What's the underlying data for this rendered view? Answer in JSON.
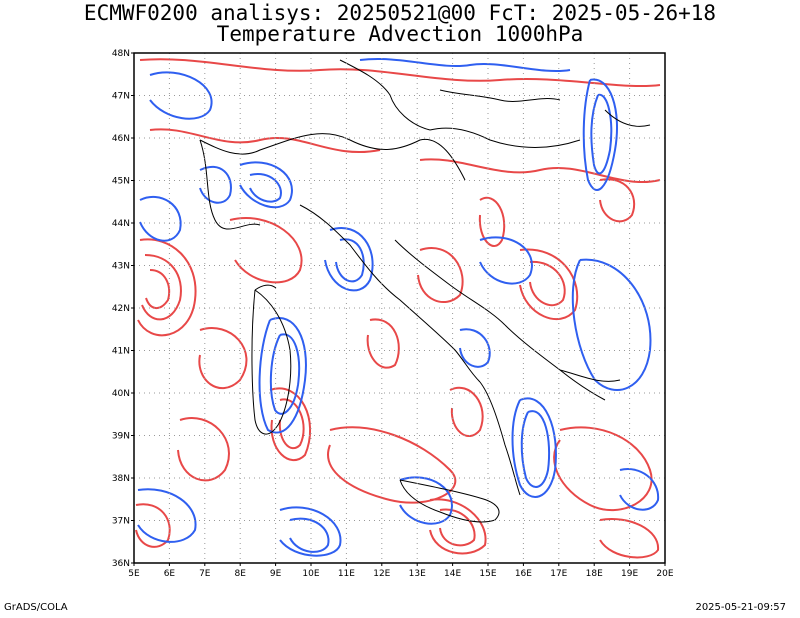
{
  "header": {
    "line1": "ECMWF0200 analisys: 20250521@00 FcT: 2025-05-26+18",
    "line2": "Temperature Advection 1000hPa"
  },
  "map": {
    "lat_labels": [
      "48N",
      "47N",
      "46N",
      "45N",
      "44N",
      "43N",
      "42N",
      "41N",
      "40N",
      "39N",
      "38N",
      "37N",
      "36N"
    ],
    "lon_labels": [
      "5E",
      "6E",
      "7E",
      "8E",
      "9E",
      "10E",
      "11E",
      "12E",
      "13E",
      "14E",
      "15E",
      "16E",
      "17E",
      "18E",
      "19E",
      "20E"
    ],
    "lon_range": [
      5,
      20
    ],
    "lat_range": [
      36,
      48
    ],
    "grid": "dotted",
    "colors": {
      "warm_advection": "#e84848",
      "cold_advection": "#2f5ff0",
      "coast": "#000000",
      "grid": "#999999"
    }
  },
  "footer": {
    "left": "GrADS/COLA",
    "right": "2025-05-21-09:57"
  }
}
